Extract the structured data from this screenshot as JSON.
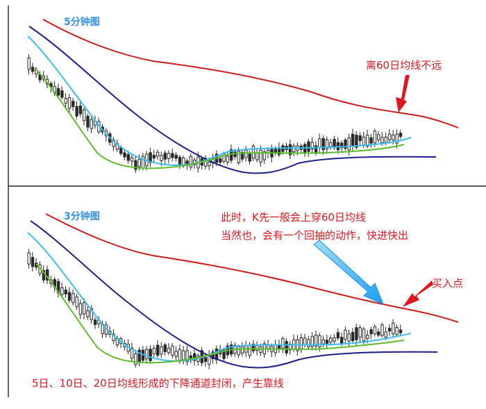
{
  "panels": [
    {
      "title": "5分钟图",
      "annotations": [
        "离60日均线不远"
      ]
    },
    {
      "title": "3分钟图",
      "annotations": [
        "此时，K先一般会上穿60日均线",
        "当然也，会有一个回抽的动作，快进快出",
        "买入点",
        "5日、10日、20日均线形成的下降通道封闭，产生靠线"
      ]
    }
  ],
  "chart_data": [
    {
      "type": "candlestick",
      "title": "5分钟图",
      "series": [
        {
          "color": "#cc1b1b",
          "kind": "moving-average"
        },
        {
          "color": "#1a1f8c",
          "kind": "moving-average"
        },
        {
          "color": "#3bbcf0",
          "kind": "moving-average"
        },
        {
          "color": "#5cbc2a",
          "kind": "moving-average"
        }
      ],
      "annotation_arrow_color": "#e0161d"
    },
    {
      "type": "candlestick",
      "title": "3分钟图",
      "series": [
        {
          "color": "#cc1b1b",
          "kind": "moving-average"
        },
        {
          "color": "#1a1f8c",
          "kind": "moving-average"
        },
        {
          "color": "#3bbcf0",
          "kind": "moving-average"
        },
        {
          "color": "#5cbc2a",
          "kind": "moving-average"
        }
      ],
      "annotation_arrow_colors": [
        "#2aa3f0",
        "#e0161d"
      ]
    }
  ]
}
